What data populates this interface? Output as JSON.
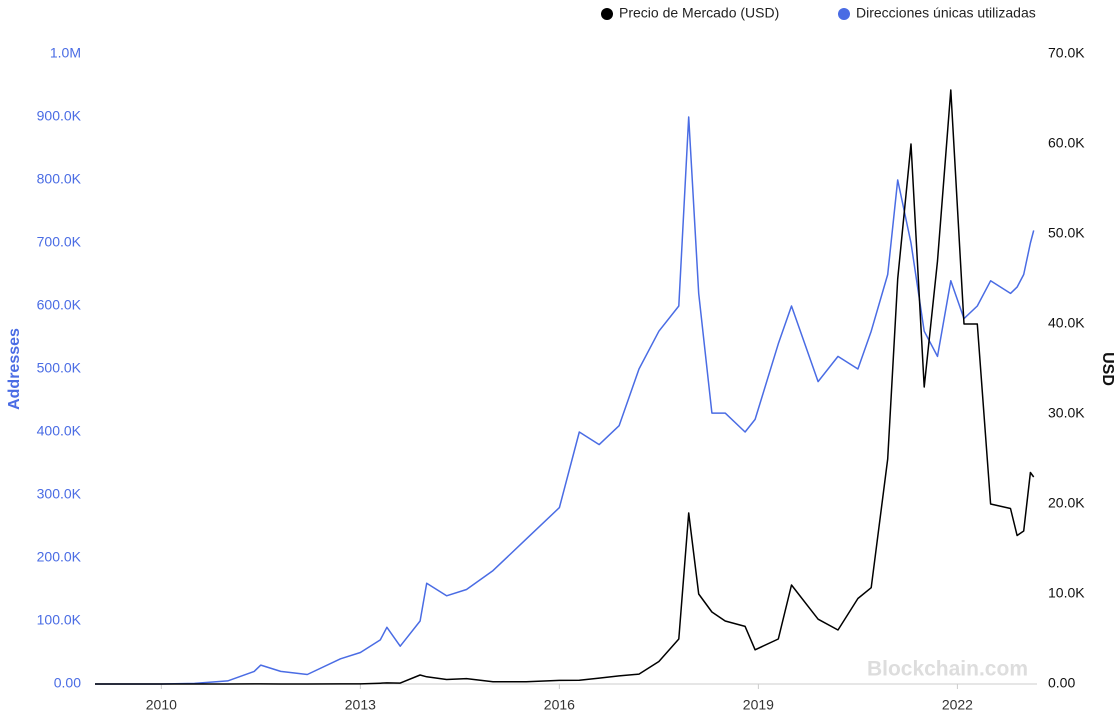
{
  "chart_data": {
    "type": "line",
    "legend": [
      "Precio de Mercado (USD)",
      "Direcciones únicas utilizadas"
    ],
    "y_label": "Addresses",
    "y2_label": "USD",
    "watermark": "Blockchain.com",
    "x": [
      2009.0,
      2010.0,
      2010.5,
      2011.0,
      2011.4,
      2011.5,
      2011.8,
      2012.2,
      2012.7,
      2013.0,
      2013.3,
      2013.4,
      2013.6,
      2013.9,
      2014.0,
      2014.3,
      2014.6,
      2015.0,
      2015.5,
      2016.0,
      2016.3,
      2016.6,
      2016.9,
      2017.2,
      2017.5,
      2017.8,
      2017.95,
      2018.1,
      2018.3,
      2018.5,
      2018.8,
      2018.95,
      2019.3,
      2019.5,
      2019.9,
      2020.2,
      2020.5,
      2020.7,
      2020.95,
      2021.1,
      2021.3,
      2021.5,
      2021.7,
      2021.9,
      2022.1,
      2022.3,
      2022.5,
      2022.8,
      2022.9,
      2023.0,
      2023.1,
      2023.15
    ],
    "series": [
      {
        "name": "Direcciones únicas utilizadas",
        "color": "#4a6ce4",
        "axis": "y",
        "values": [
          0,
          0,
          1000,
          5000,
          20000,
          30000,
          20000,
          15000,
          40000,
          50000,
          70000,
          90000,
          60000,
          100000,
          160000,
          140000,
          150000,
          180000,
          230000,
          280000,
          400000,
          380000,
          410000,
          500000,
          560000,
          600000,
          900000,
          620000,
          430000,
          430000,
          400000,
          420000,
          540000,
          600000,
          480000,
          520000,
          500000,
          560000,
          650000,
          800000,
          700000,
          560000,
          520000,
          640000,
          580000,
          600000,
          640000,
          620000,
          630000,
          650000,
          700000,
          720000
        ]
      },
      {
        "name": "Precio de Mercado (USD)",
        "color": "#000000",
        "axis": "y2",
        "values": [
          0,
          0,
          0,
          1,
          15,
          14,
          3,
          5,
          11,
          13,
          90,
          120,
          100,
          1000,
          800,
          500,
          600,
          250,
          250,
          400,
          420,
          650,
          900,
          1100,
          2500,
          5000,
          19000,
          10000,
          8000,
          7000,
          6400,
          3800,
          5000,
          11000,
          7200,
          6000,
          9500,
          10700,
          25000,
          45000,
          60000,
          33000,
          47000,
          66000,
          40000,
          40000,
          20000,
          19500,
          16500,
          17000,
          23500,
          23000
        ]
      }
    ],
    "xlim": [
      2009.0,
      2023.2
    ],
    "xticks": [
      2010,
      2013,
      2016,
      2019,
      2022
    ],
    "ylim": [
      0,
      1000000
    ],
    "yticks": [
      {
        "value": 0,
        "label": "0.00"
      },
      {
        "value": 100000,
        "label": "100.0K"
      },
      {
        "value": 200000,
        "label": "200.0K"
      },
      {
        "value": 300000,
        "label": "300.0K"
      },
      {
        "value": 400000,
        "label": "400.0K"
      },
      {
        "value": 500000,
        "label": "500.0K"
      },
      {
        "value": 600000,
        "label": "600.0K"
      },
      {
        "value": 700000,
        "label": "700.0K"
      },
      {
        "value": 800000,
        "label": "800.0K"
      },
      {
        "value": 900000,
        "label": "900.0K"
      },
      {
        "value": 1000000,
        "label": "1.0M"
      }
    ],
    "y2lim": [
      0,
      70000
    ],
    "y2ticks": [
      {
        "value": 0,
        "label": "0.00"
      },
      {
        "value": 10000,
        "label": "10.0K"
      },
      {
        "value": 20000,
        "label": "20.0K"
      },
      {
        "value": 30000,
        "label": "30.0K"
      },
      {
        "value": 40000,
        "label": "40.0K"
      },
      {
        "value": 50000,
        "label": "50.0K"
      },
      {
        "value": 60000,
        "label": "60.0K"
      },
      {
        "value": 70000,
        "label": "70.0K"
      }
    ],
    "grid": false
  }
}
